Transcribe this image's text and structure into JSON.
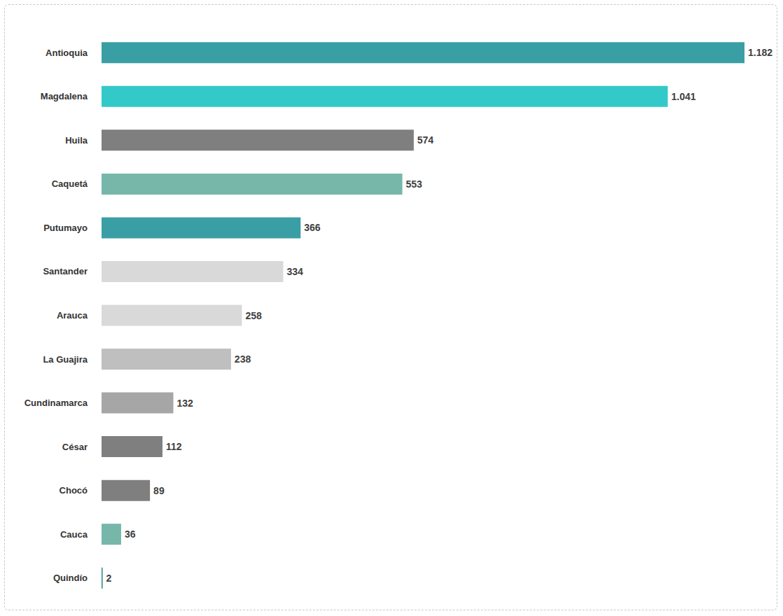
{
  "chart_data": {
    "type": "bar",
    "orientation": "horizontal",
    "categories": [
      "Antioquia",
      "Magdalena",
      "Huila",
      "Caquetá",
      "Putumayo",
      "Santander",
      "Arauca",
      "La Guajira",
      "Cundinamarca",
      "César",
      "Chocó",
      "Cauca",
      "Quindío"
    ],
    "values": [
      1182,
      1041,
      574,
      553,
      366,
      334,
      258,
      238,
      132,
      112,
      89,
      36,
      2
    ],
    "value_labels": [
      "1.182",
      "1.041",
      "574",
      "553",
      "366",
      "334",
      "258",
      "238",
      "132",
      "112",
      "89",
      "36",
      "2"
    ],
    "colors": [
      "#3a9ea5",
      "#33c9c9",
      "#7f7f7f",
      "#76b7aa",
      "#3a9ea5",
      "#d9d9d9",
      "#d9d9d9",
      "#bfbfbf",
      "#a6a6a6",
      "#7f7f7f",
      "#7f7f7f",
      "#76b7aa",
      "#2e8a8a"
    ],
    "xlim": [
      0,
      1182
    ],
    "data_labels": true,
    "grid": false,
    "tick_labels": "y"
  }
}
